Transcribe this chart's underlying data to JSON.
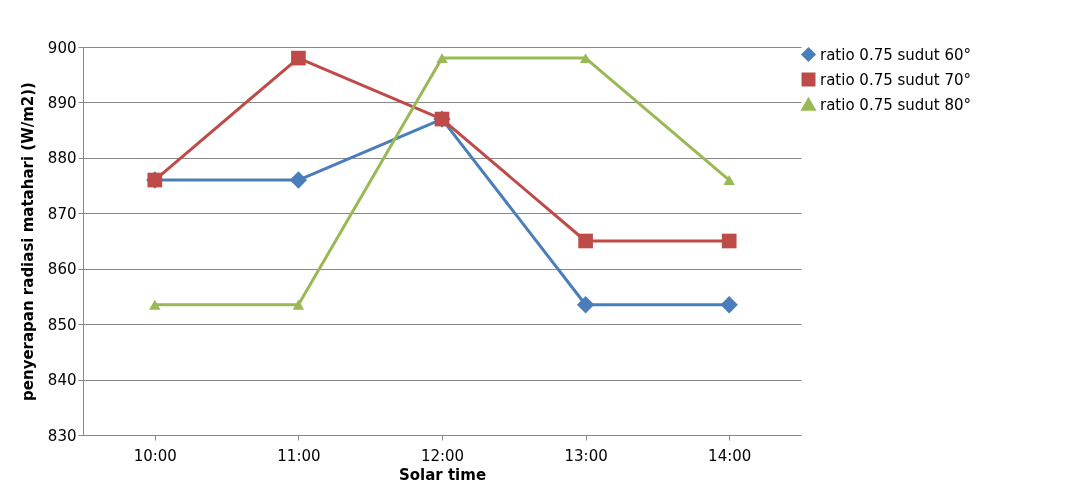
{
  "chart_data": {
    "type": "line",
    "xlabel": "Solar time",
    "ylabel": "penyerapan radiasi matahari (W/m2))",
    "categories": [
      "10:00",
      "11:00",
      "12:00",
      "13:00",
      "14:00"
    ],
    "series": [
      {
        "name": "ratio 0.75 sudut 60°",
        "color": "#4a7ebb",
        "marker": "diamond",
        "values": [
          876,
          876,
          887,
          853.5,
          853.5
        ]
      },
      {
        "name": "ratio 0.75 sudut 70°",
        "color": "#be4b48",
        "marker": "square",
        "values": [
          876,
          898,
          887,
          865,
          865
        ]
      },
      {
        "name": "ratio 0.75 sudut 80°",
        "color": "#98b954",
        "marker": "triangle",
        "values": [
          853.5,
          853.5,
          898,
          898,
          876
        ]
      }
    ],
    "ylim": [
      830,
      900
    ],
    "yticks": [
      830,
      840,
      850,
      860,
      870,
      880,
      890,
      900
    ],
    "grid": "y",
    "legend": "right",
    "line_style": "solid"
  }
}
